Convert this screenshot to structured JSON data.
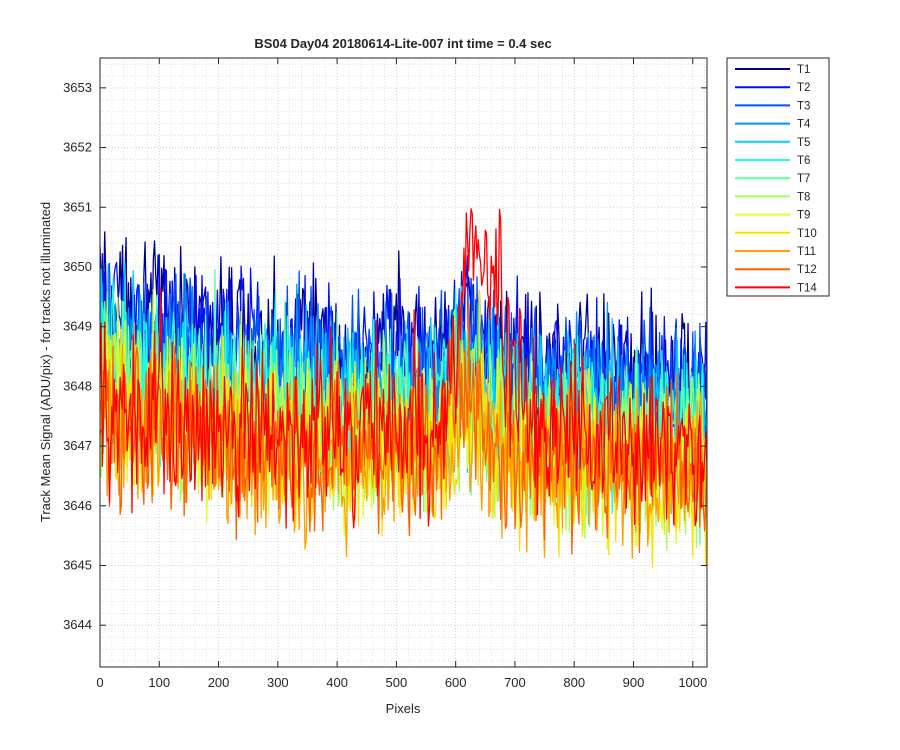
{
  "chart_data": {
    "type": "line",
    "title": "BS04 Day04 20180614-Lite-007 int time = 0.4 sec",
    "xlabel": "Pixels",
    "ylabel": "Track Mean Signal (ADU/pix) - for tracks not illuminated",
    "xlim": [
      0,
      1024
    ],
    "ylim": [
      3643.3,
      3653.5
    ],
    "xticks": [
      0,
      100,
      200,
      300,
      400,
      500,
      600,
      700,
      800,
      900,
      1000
    ],
    "yticks": [
      3644,
      3645,
      3646,
      3647,
      3648,
      3649,
      3650,
      3651,
      3652,
      3653
    ],
    "grid": true,
    "minor_grid": true,
    "legend_position": "outside-top-right",
    "noise_note": "each series is a dense noisy trace; baselines estimated per region",
    "series": [
      {
        "name": "T1",
        "color": "#00008F",
        "baseline": [
          [
            0,
            3649.6
          ],
          [
            300,
            3648.7
          ],
          [
            560,
            3648.6
          ],
          [
            620,
            3649.0
          ],
          [
            700,
            3648.5
          ],
          [
            1024,
            3648.2
          ]
        ],
        "noise": 0.75
      },
      {
        "name": "T2",
        "color": "#0010FF",
        "baseline": [
          [
            0,
            3649.3
          ],
          [
            300,
            3648.5
          ],
          [
            560,
            3648.4
          ],
          [
            620,
            3648.8
          ],
          [
            700,
            3648.3
          ],
          [
            1024,
            3648.0
          ]
        ],
        "noise": 0.75
      },
      {
        "name": "T3",
        "color": "#0050FF",
        "baseline": [
          [
            0,
            3649.0
          ],
          [
            300,
            3648.3
          ],
          [
            560,
            3648.2
          ],
          [
            620,
            3648.6
          ],
          [
            700,
            3648.1
          ],
          [
            1024,
            3647.8
          ]
        ],
        "noise": 0.75
      },
      {
        "name": "T4",
        "color": "#0090FF",
        "baseline": [
          [
            0,
            3648.8
          ],
          [
            300,
            3648.1
          ],
          [
            560,
            3648.0
          ],
          [
            620,
            3648.4
          ],
          [
            700,
            3647.9
          ],
          [
            1024,
            3647.6
          ]
        ],
        "noise": 0.75
      },
      {
        "name": "T5",
        "color": "#00D0FF",
        "baseline": [
          [
            0,
            3648.6
          ],
          [
            300,
            3647.9
          ],
          [
            560,
            3647.8
          ],
          [
            620,
            3648.2
          ],
          [
            700,
            3647.7
          ],
          [
            1024,
            3647.4
          ]
        ],
        "noise": 0.8
      },
      {
        "name": "T6",
        "color": "#20FFDF",
        "baseline": [
          [
            0,
            3648.4
          ],
          [
            300,
            3647.7
          ],
          [
            560,
            3647.6
          ],
          [
            620,
            3648.0
          ],
          [
            700,
            3647.5
          ],
          [
            1024,
            3647.2
          ]
        ],
        "noise": 0.8
      },
      {
        "name": "T7",
        "color": "#60FF9F",
        "baseline": [
          [
            0,
            3648.2
          ],
          [
            300,
            3647.5
          ],
          [
            560,
            3647.4
          ],
          [
            620,
            3647.8
          ],
          [
            700,
            3647.3
          ],
          [
            1024,
            3647.0
          ]
        ],
        "noise": 0.8
      },
      {
        "name": "T8",
        "color": "#9FFF60",
        "baseline": [
          [
            0,
            3648.0
          ],
          [
            300,
            3647.3
          ],
          [
            560,
            3647.2
          ],
          [
            620,
            3647.6
          ],
          [
            700,
            3647.1
          ],
          [
            1024,
            3646.8
          ]
        ],
        "noise": 0.8
      },
      {
        "name": "T9",
        "color": "#DFFF20",
        "baseline": [
          [
            0,
            3647.8
          ],
          [
            300,
            3647.1
          ],
          [
            560,
            3647.0
          ],
          [
            620,
            3647.4
          ],
          [
            700,
            3646.9
          ],
          [
            1024,
            3646.6
          ]
        ],
        "noise": 0.8
      },
      {
        "name": "T10",
        "color": "#FFDF00",
        "baseline": [
          [
            0,
            3647.6
          ],
          [
            300,
            3646.9
          ],
          [
            560,
            3646.8
          ],
          [
            620,
            3647.6
          ],
          [
            700,
            3646.7
          ],
          [
            1024,
            3646.5
          ]
        ],
        "noise": 0.8
      },
      {
        "name": "T11",
        "color": "#FFA000",
        "baseline": [
          [
            0,
            3647.5
          ],
          [
            300,
            3646.8
          ],
          [
            560,
            3646.8
          ],
          [
            620,
            3647.7
          ],
          [
            700,
            3646.7
          ],
          [
            1024,
            3646.5
          ]
        ],
        "noise": 0.8
      },
      {
        "name": "T12",
        "color": "#FF6000",
        "baseline": [
          [
            0,
            3647.5
          ],
          [
            300,
            3646.9
          ],
          [
            560,
            3647.0
          ],
          [
            620,
            3648.0
          ],
          [
            700,
            3646.8
          ],
          [
            1024,
            3646.6
          ]
        ],
        "noise": 0.8
      },
      {
        "name": "T14",
        "color": "#FF0000",
        "baseline": [
          [
            0,
            3647.6
          ],
          [
            300,
            3647.1
          ],
          [
            560,
            3647.3
          ],
          [
            600,
            3648.3
          ],
          [
            620,
            3650.2
          ],
          [
            650,
            3650.3
          ],
          [
            690,
            3648.5
          ],
          [
            720,
            3647.3
          ],
          [
            1024,
            3646.8
          ]
        ],
        "noise": 0.85
      }
    ]
  }
}
